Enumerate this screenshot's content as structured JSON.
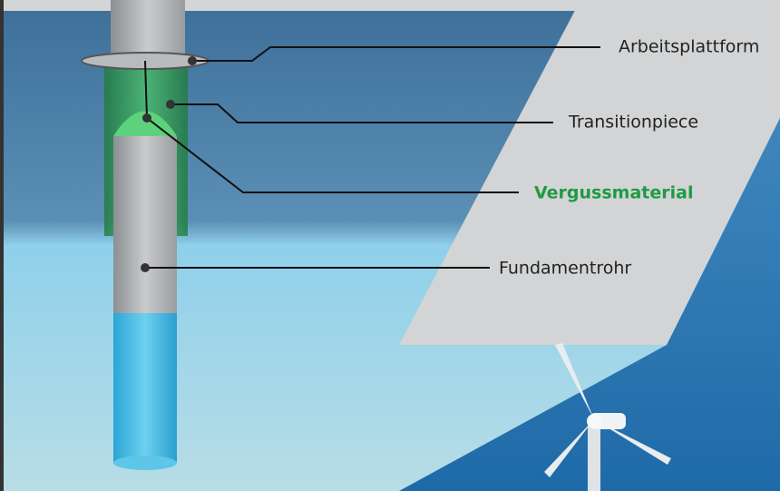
{
  "labels": {
    "platform": "Arbeitsplattform",
    "transition": "Transitionpiece",
    "grout": "Vergussmaterial",
    "pile": "Fundamentrohr"
  }
}
